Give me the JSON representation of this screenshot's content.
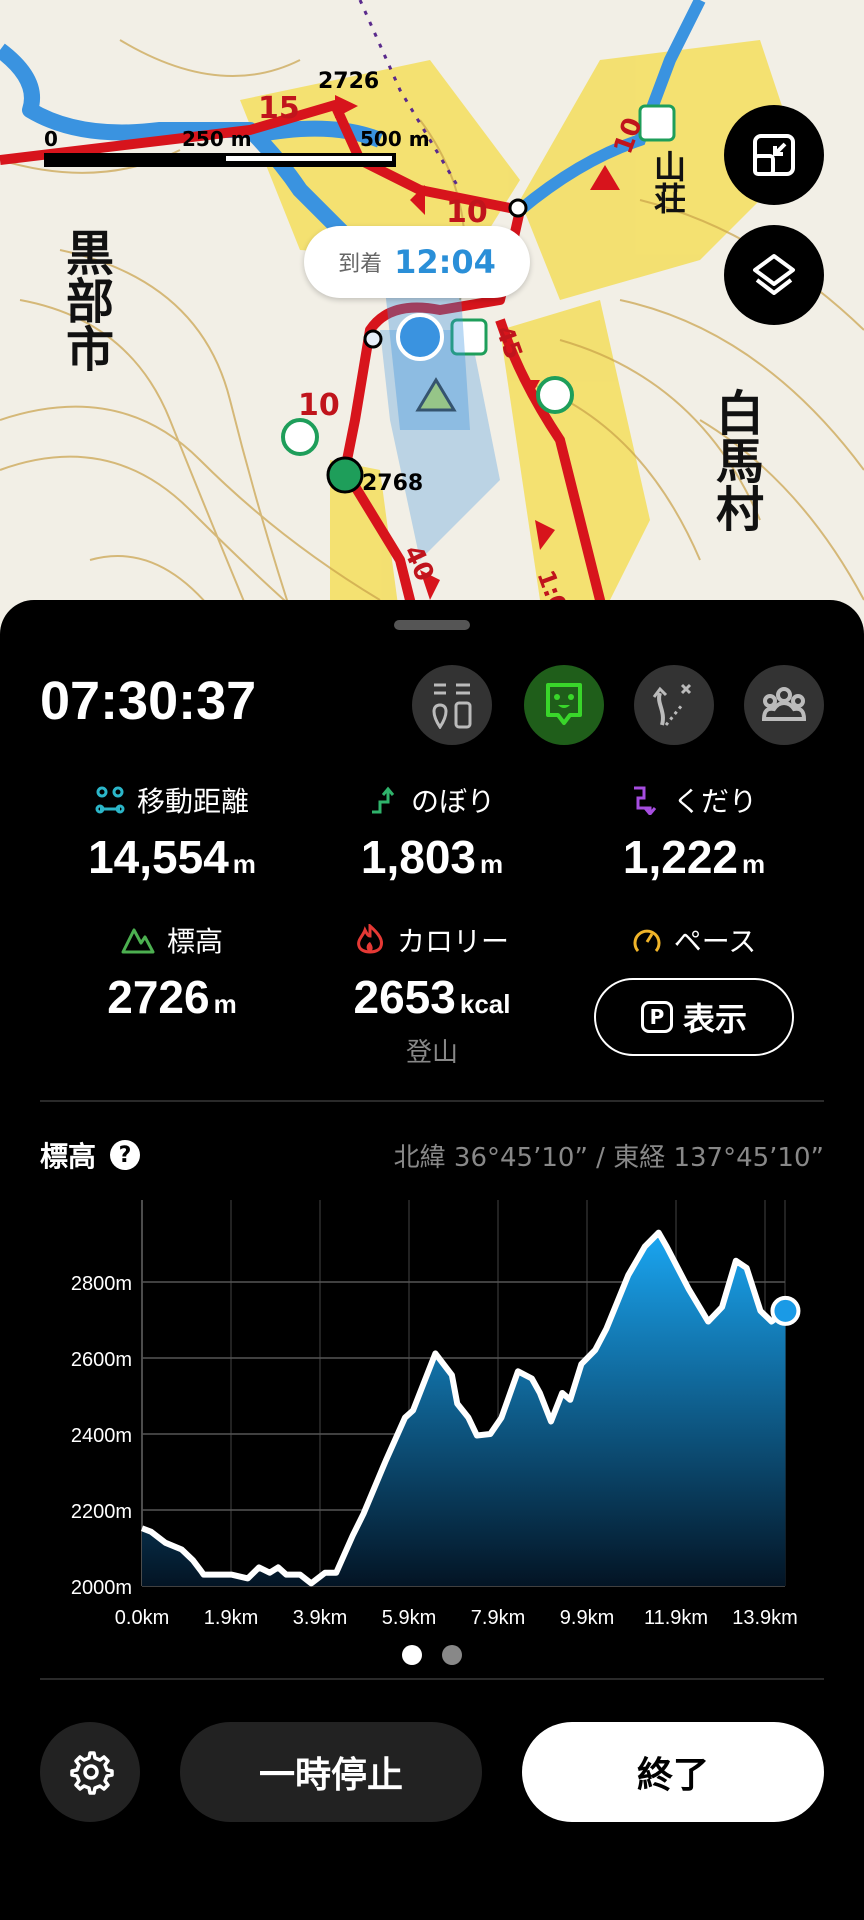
{
  "map": {
    "scale_labels": [
      "0",
      "250 m",
      "500 m"
    ],
    "place_labels": [
      "黒部市",
      "白馬村",
      "山荘"
    ],
    "peak_labels": [
      "2726",
      "2768"
    ],
    "trail_times": [
      "15",
      "10",
      "10",
      "10",
      "45",
      "40",
      "1:0"
    ],
    "arrival_label": "到着",
    "arrival_time": "12:04",
    "buttons": [
      {
        "icon": "fit-route-icon"
      },
      {
        "icon": "layers-icon"
      }
    ],
    "colors": {
      "trail": "#d7141c",
      "river": "#3a93e0",
      "location": "#3a93e0"
    }
  },
  "sheet": {
    "elapsed_time": "07:30:37",
    "action_icons": [
      "markers-icon",
      "chat-icon",
      "route-icon",
      "group-icon"
    ],
    "active_action_color": "#39d62a",
    "stats": [
      {
        "label": "移動距離",
        "value": "14,554",
        "unit": "m",
        "icon": "distance-icon",
        "color": "#2bb6c9"
      },
      {
        "label": "のぼり",
        "value": "1,803",
        "unit": "m",
        "icon": "ascent-icon",
        "color": "#2fb36b"
      },
      {
        "label": "くだり",
        "value": "1,222",
        "unit": "m",
        "icon": "descent-icon",
        "color": "#a64de0"
      },
      {
        "label": "標高",
        "value": "2726",
        "unit": "m",
        "icon": "mountain-icon",
        "color": "#4caf50"
      },
      {
        "label": "カロリー",
        "value": "2653",
        "unit": "kcal",
        "sub": "登山",
        "icon": "flame-icon",
        "color": "#e53935"
      },
      {
        "label": "ペース",
        "button": "表示",
        "button_icon": "P",
        "icon": "speedometer-icon",
        "color": "#f0b429"
      }
    ],
    "elevation_title": "標高",
    "coordinates": "北緯 36°45’10” / 東経 137°45’10”",
    "page_count": 2,
    "current_page": 1,
    "pause_label": "一時停止",
    "end_label": "終了"
  },
  "chart_data": {
    "type": "area",
    "x_unit": "km",
    "y_unit": "m",
    "xticks": [
      "0.0km",
      "1.9km",
      "3.9km",
      "5.9km",
      "7.9km",
      "9.9km",
      "11.9km",
      "13.9km"
    ],
    "yticks": [
      "2000m",
      "2200m",
      "2400m",
      "2600m",
      "2800m"
    ],
    "ylim": [
      2000,
      2960
    ],
    "xlim": [
      0,
      14.4
    ],
    "grid": true,
    "fill_color": "#1a9ae6",
    "x": [
      0,
      0.2,
      0.52,
      0.89,
      1.14,
      1.32,
      1.38,
      2.0,
      2.37,
      2.62,
      2.86,
      3.05,
      3.23,
      3.54,
      3.79,
      4.1,
      4.35,
      4.72,
      4.96,
      5.46,
      5.89,
      6.07,
      6.57,
      6.94,
      7.06,
      7.31,
      7.5,
      7.8,
      8.05,
      8.42,
      8.73,
      8.91,
      9.16,
      9.41,
      9.59,
      9.84,
      10.15,
      10.4,
      10.89,
      11.26,
      11.57,
      11.75,
      12.25,
      12.68,
      12.99,
      13.3,
      13.54,
      13.85,
      14.1,
      14.41
    ],
    "y": [
      2152,
      2143,
      2114,
      2096,
      2068,
      2040,
      2030,
      2030,
      2020,
      2049,
      2035,
      2049,
      2030,
      2030,
      2007,
      2035,
      2035,
      2133,
      2190,
      2330,
      2443,
      2462,
      2612,
      2555,
      2480,
      2443,
      2396,
      2400,
      2443,
      2565,
      2546,
      2508,
      2433,
      2508,
      2490,
      2584,
      2621,
      2677,
      2818,
      2893,
      2930,
      2893,
      2780,
      2696,
      2734,
      2856,
      2837,
      2724,
      2696,
      2724
    ]
  }
}
